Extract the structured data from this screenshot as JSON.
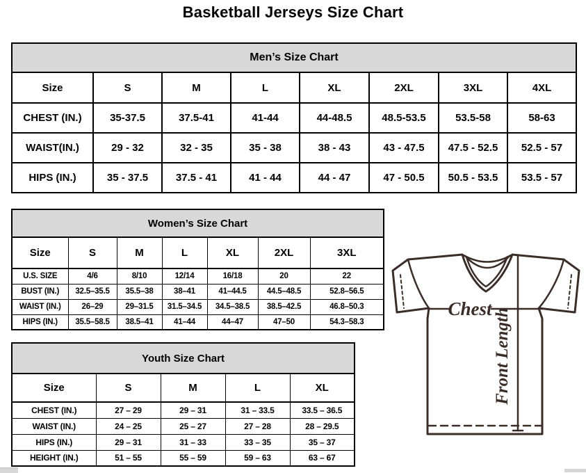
{
  "page": {
    "title": "Basketball Jerseys Size Chart"
  },
  "mens": {
    "title": "Men’s Size Chart",
    "columns": [
      "Size",
      "S",
      "M",
      "L",
      "XL",
      "2XL",
      "3XL",
      "4XL"
    ],
    "rows": [
      {
        "label": "CHEST (IN.)",
        "values": [
          "35-37.5",
          "37.5-41",
          "41-44",
          "44-48.5",
          "48.5-53.5",
          "53.5-58",
          "58-63"
        ]
      },
      {
        "label": "WAIST(IN.)",
        "values": [
          "29 - 32",
          "32 - 35",
          "35 - 38",
          "38 - 43",
          "43 - 47.5",
          "47.5 - 52.5",
          "52.5 - 57"
        ]
      },
      {
        "label": "HIPS (IN.)",
        "values": [
          "35 - 37.5",
          "37.5 - 41",
          "41 - 44",
          "44 - 47",
          "47 - 50.5",
          "50.5 - 53.5",
          "53.5 - 57"
        ]
      }
    ]
  },
  "womens": {
    "title": "Women’s Size Chart",
    "columns": [
      "Size",
      "S",
      "M",
      "L",
      "XL",
      "2XL",
      "3XL"
    ],
    "rows": [
      {
        "label": "U.S. SIZE",
        "values": [
          "4/6",
          "8/10",
          "12/14",
          "16/18",
          "20",
          "22"
        ]
      },
      {
        "label": "BUST (IN.)",
        "values": [
          "32.5–35.5",
          "35.5–38",
          "38–41",
          "41–44.5",
          "44.5–48.5",
          "52.8–56.5"
        ]
      },
      {
        "label": "WAIST (IN.)",
        "values": [
          "26–29",
          "29–31.5",
          "31.5–34.5",
          "34.5–38.5",
          "38.5–42.5",
          "46.8–50.3"
        ]
      },
      {
        "label": "HIPS (IN.)",
        "values": [
          "35.5–58.5",
          "38.5–41",
          "41–44",
          "44–47",
          "47–50",
          "54.3–58.3"
        ]
      }
    ]
  },
  "youth": {
    "title": "Youth Size Chart",
    "columns": [
      "Size",
      "S",
      "M",
      "L",
      "XL"
    ],
    "rows": [
      {
        "label": "CHEST (IN.)",
        "values": [
          "27 – 29",
          "29 – 31",
          "31 – 33.5",
          "33.5 – 36.5"
        ]
      },
      {
        "label": "WAIST (IN.)",
        "values": [
          "24 – 25",
          "25 – 27",
          "27 – 28",
          "28 – 29.5"
        ]
      },
      {
        "label": "HIPS (IN.)",
        "values": [
          "29 – 31",
          "31 – 33",
          "33 – 35",
          "35 – 37"
        ]
      },
      {
        "label": "HEIGHT (IN.)",
        "values": [
          "51 – 55",
          "55 – 59",
          "59 – 63",
          "63 – 67"
        ]
      }
    ]
  },
  "diagram": {
    "chest_label": "Chest",
    "front_length_label": "Front Length"
  },
  "colors": {
    "header_bg": "#d8d8d8",
    "diagram_line": "#3a2d27",
    "table_border": "#000000"
  }
}
